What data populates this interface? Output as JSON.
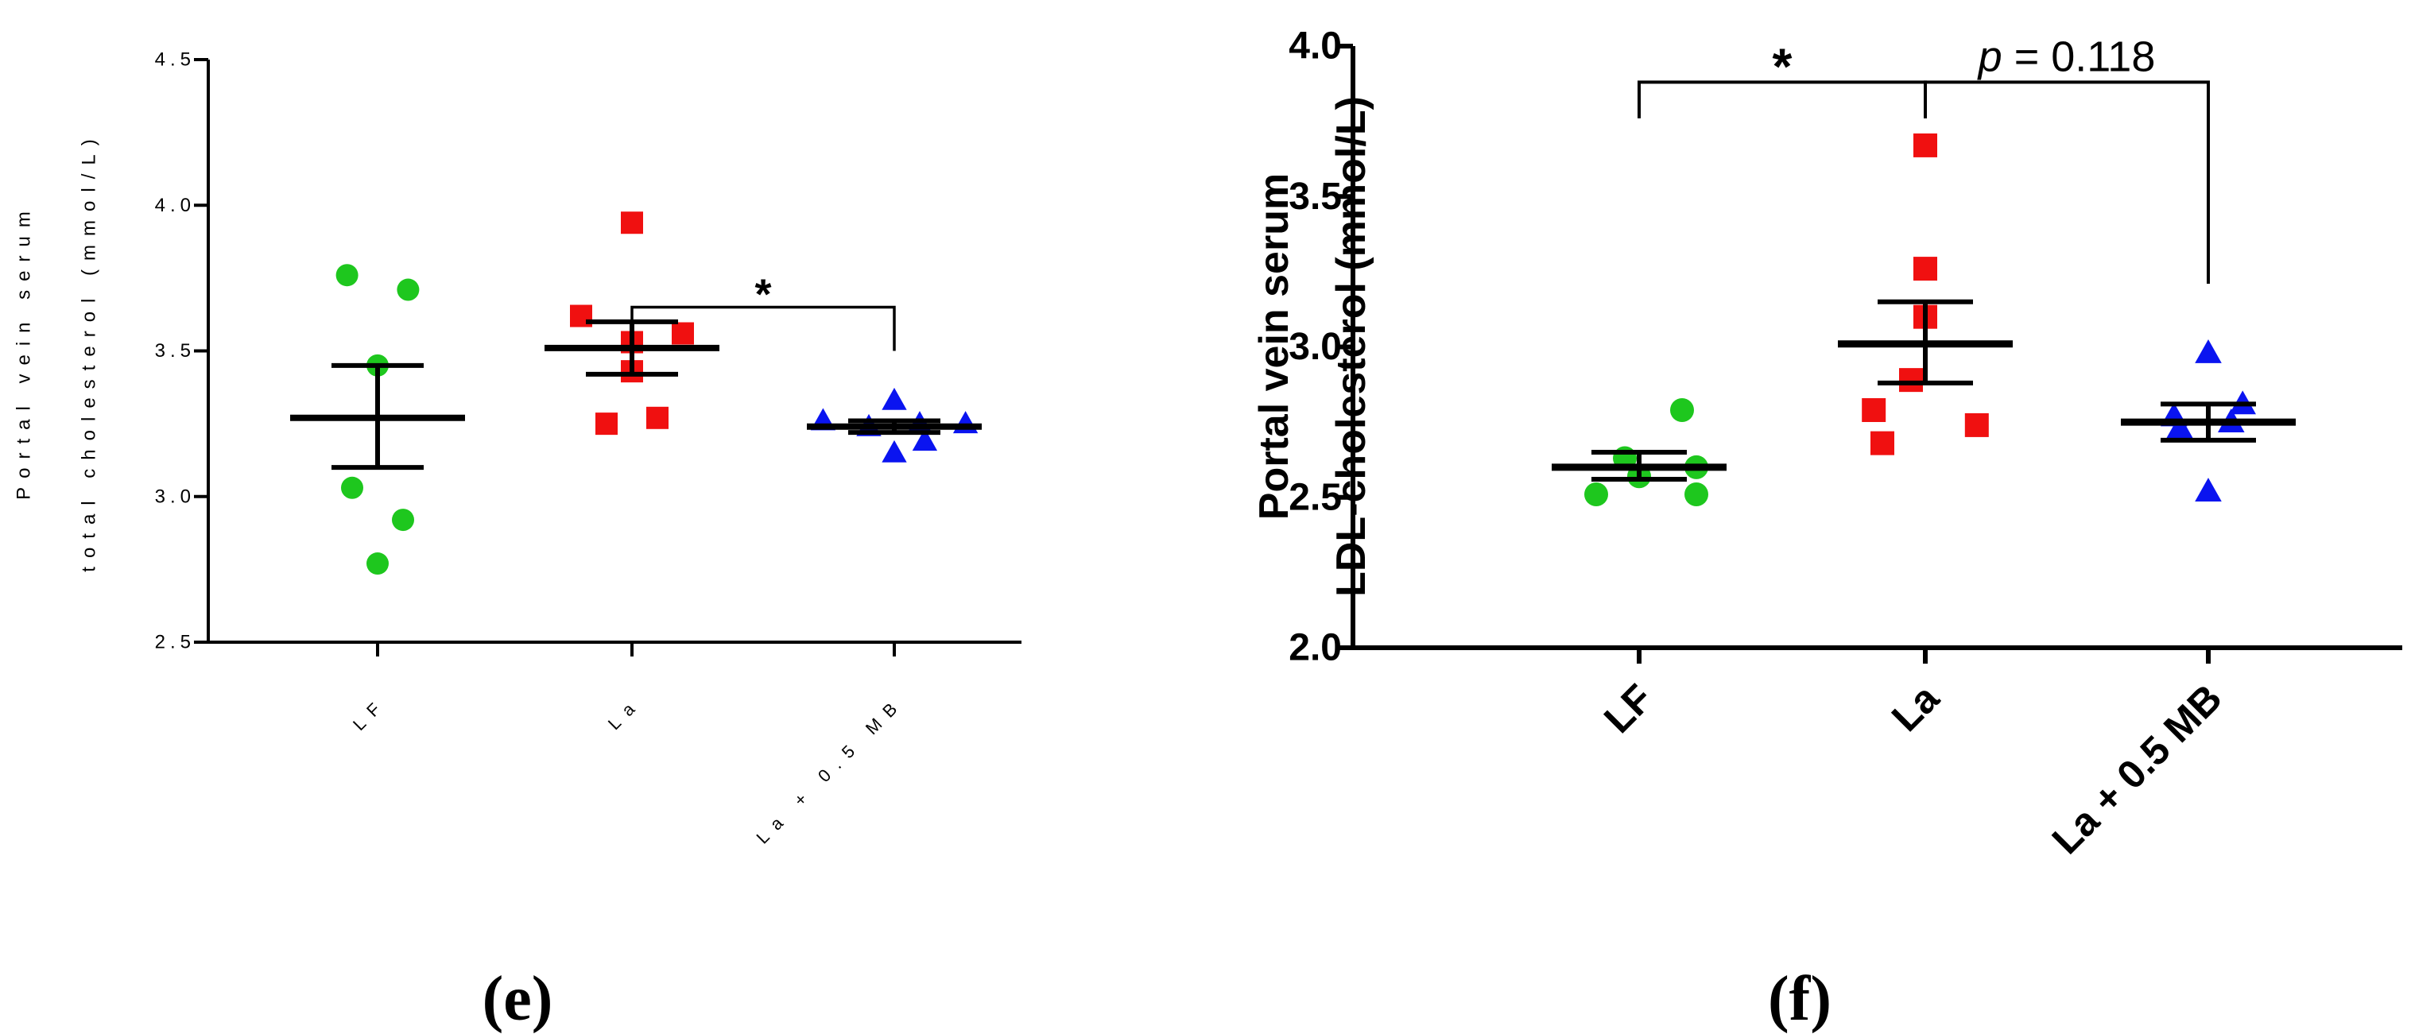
{
  "chart_data": [
    {
      "type": "scatter",
      "panel_label": "(e)",
      "ylabel_lines": [
        "Portal vein serum",
        "total cholesterol (mmol/L)"
      ],
      "categories": [
        "LF",
        "La",
        "La + 0.5 MB"
      ],
      "ylim": [
        2.5,
        4.5
      ],
      "yticks": [
        2.5,
        3.0,
        3.5,
        4.0,
        4.5
      ],
      "ytick_labels": [
        "2.5",
        "3.0",
        "3.5",
        "4.0",
        "4.5"
      ],
      "series": [
        {
          "category": "LF",
          "marker": "circle",
          "color": "#1ec71e",
          "points": [
            {
              "offset": -0.12,
              "y": 3.76
            },
            {
              "offset": 0.12,
              "y": 3.71
            },
            {
              "offset": 0.0,
              "y": 3.45
            },
            {
              "offset": -0.1,
              "y": 3.03
            },
            {
              "offset": 0.1,
              "y": 2.92
            },
            {
              "offset": 0.0,
              "y": 2.77
            }
          ],
          "mean": 3.27,
          "sem_low": 3.1,
          "sem_high": 3.45
        },
        {
          "category": "La",
          "marker": "square",
          "color": "#f01010",
          "points": [
            {
              "offset": 0.0,
              "y": 3.94
            },
            {
              "offset": -0.2,
              "y": 3.62
            },
            {
              "offset": 0.2,
              "y": 3.56
            },
            {
              "offset": 0.0,
              "y": 3.53
            },
            {
              "offset": 0.0,
              "y": 3.43
            },
            {
              "offset": 0.1,
              "y": 3.27
            },
            {
              "offset": -0.1,
              "y": 3.25
            }
          ],
          "mean": 3.51,
          "sem_low": 3.42,
          "sem_high": 3.6
        },
        {
          "category": "La + 0.5 MB",
          "marker": "triangle",
          "color": "#0a14f0",
          "points": [
            {
              "offset": -0.28,
              "y": 3.26
            },
            {
              "offset": 0.0,
              "y": 3.33
            },
            {
              "offset": -0.1,
              "y": 3.24
            },
            {
              "offset": 0.1,
              "y": 3.25
            },
            {
              "offset": 0.0,
              "y": 3.15
            },
            {
              "offset": 0.12,
              "y": 3.19
            },
            {
              "offset": 0.28,
              "y": 3.25
            }
          ],
          "mean": 3.24,
          "sem_low": 3.22,
          "sem_high": 3.26
        }
      ],
      "annotations": [
        {
          "from": "La",
          "to": "La + 0.5 MB",
          "bracket_y": 3.65,
          "left_drop_y": 3.58,
          "right_drop_y": 3.5,
          "text": "*",
          "italic_prefix": "",
          "suffix": ""
        }
      ]
    },
    {
      "type": "scatter",
      "panel_label": "(f)",
      "ylabel_lines": [
        "Portal vein serum",
        "LDL-cholesterol (mmol/L)"
      ],
      "categories": [
        "LF",
        "La",
        "La + 0.5 MB"
      ],
      "ylim": [
        2.0,
        4.0
      ],
      "yticks": [
        2.0,
        2.5,
        3.0,
        3.5,
        4.0
      ],
      "ytick_labels": [
        "2.0",
        "2.5",
        "3.0",
        "3.5",
        "4.0"
      ],
      "series": [
        {
          "category": "LF",
          "marker": "circle",
          "color": "#1ec71e",
          "points": [
            {
              "offset": 0.15,
              "y": 2.79
            },
            {
              "offset": -0.05,
              "y": 2.63
            },
            {
              "offset": 0.2,
              "y": 2.6
            },
            {
              "offset": 0.0,
              "y": 2.57
            },
            {
              "offset": -0.15,
              "y": 2.51
            },
            {
              "offset": 0.2,
              "y": 2.51
            }
          ],
          "mean": 2.6,
          "sem_low": 2.56,
          "sem_high": 2.65
        },
        {
          "category": "La",
          "marker": "square",
          "color": "#f01010",
          "points": [
            {
              "offset": 0.0,
              "y": 3.67
            },
            {
              "offset": 0.0,
              "y": 3.26
            },
            {
              "offset": 0.0,
              "y": 3.1
            },
            {
              "offset": -0.05,
              "y": 2.89
            },
            {
              "offset": -0.18,
              "y": 2.79
            },
            {
              "offset": 0.18,
              "y": 2.74
            },
            {
              "offset": -0.15,
              "y": 2.68
            }
          ],
          "mean": 3.01,
          "sem_low": 2.88,
          "sem_high": 3.15
        },
        {
          "category": "La + 0.5 MB",
          "marker": "triangle",
          "color": "#0a14f0",
          "points": [
            {
              "offset": 0.0,
              "y": 2.98
            },
            {
              "offset": 0.12,
              "y": 2.81
            },
            {
              "offset": -0.12,
              "y": 2.77
            },
            {
              "offset": 0.08,
              "y": 2.75
            },
            {
              "offset": -0.1,
              "y": 2.73
            },
            {
              "offset": 0.0,
              "y": 2.52
            }
          ],
          "mean": 2.75,
          "sem_low": 2.69,
          "sem_high": 2.81
        }
      ],
      "annotations": [
        {
          "from": "LF",
          "to": "La",
          "bracket_y": 3.88,
          "left_drop_y": 3.76,
          "right_drop_y": 3.76,
          "text": "*",
          "italic_prefix": "",
          "suffix": ""
        },
        {
          "from": "La",
          "to": "La + 0.5 MB",
          "bracket_y": 3.88,
          "left_drop_y": 3.76,
          "right_drop_y": 3.21,
          "text": "",
          "italic_prefix": "p",
          "suffix": " = 0.118"
        }
      ]
    }
  ],
  "colors": {
    "axis": "#000000",
    "background": "#ffffff"
  }
}
